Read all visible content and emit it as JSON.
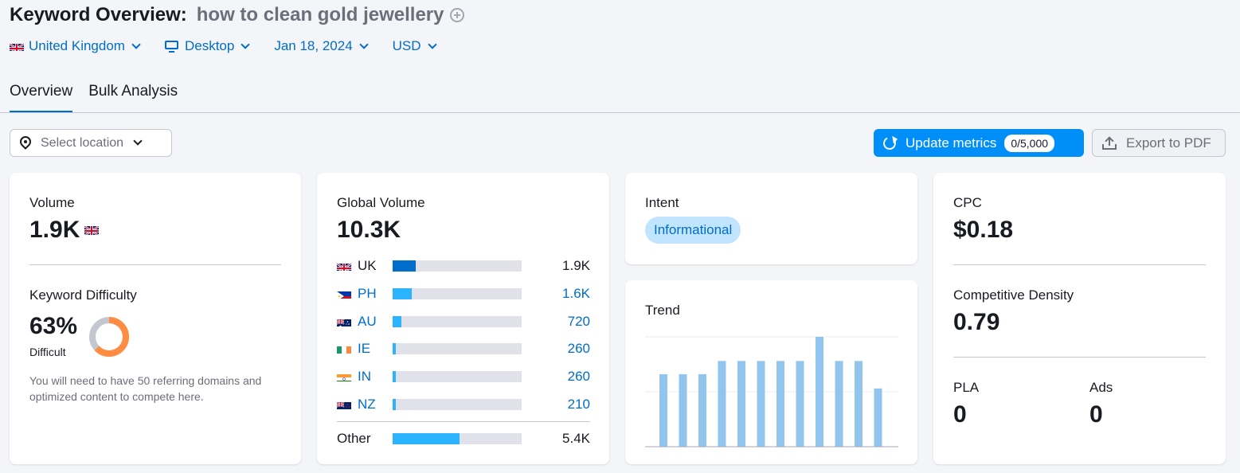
{
  "header": {
    "title_prefix": "Keyword Overview:",
    "keyword": "how to clean gold jewellery",
    "add_icon": "plus-circle-icon"
  },
  "filters": {
    "country": "United Kingdom",
    "device": "Desktop",
    "date": "Jan 18, 2024",
    "currency": "USD"
  },
  "tabs": [
    {
      "label": "Overview",
      "active": true
    },
    {
      "label": "Bulk Analysis",
      "active": false
    }
  ],
  "toolbar": {
    "location_placeholder": "Select location",
    "update_label": "Update metrics",
    "update_count": "0/5,000",
    "export_label": "Export to PDF"
  },
  "volume": {
    "label": "Volume",
    "value": "1.9K"
  },
  "keyword_difficulty": {
    "label": "Keyword Difficulty",
    "value": "63%",
    "level": "Difficult",
    "percent": 63,
    "description": "You will need to have 50 referring domains and optimized content to compete here."
  },
  "global_volume": {
    "label": "Global Volume",
    "value": "10.3K",
    "rows": [
      {
        "code": "UK",
        "value": "1.9K",
        "fraction": 0.18,
        "link": false,
        "flag": "uk"
      },
      {
        "code": "PH",
        "value": "1.6K",
        "fraction": 0.15,
        "link": true,
        "flag": "ph"
      },
      {
        "code": "AU",
        "value": "720",
        "fraction": 0.07,
        "link": true,
        "flag": "au"
      },
      {
        "code": "IE",
        "value": "260",
        "fraction": 0.025,
        "link": true,
        "flag": "ie"
      },
      {
        "code": "IN",
        "value": "260",
        "fraction": 0.025,
        "link": true,
        "flag": "in"
      },
      {
        "code": "NZ",
        "value": "210",
        "fraction": 0.02,
        "link": true,
        "flag": "nz"
      }
    ],
    "other": {
      "label": "Other",
      "value": "5.4K",
      "fraction": 0.52
    },
    "colors": {
      "uk": "#006dca",
      "country": "#2bb3ff",
      "track": "#e0e1e9"
    }
  },
  "intent": {
    "label": "Intent",
    "badge": "Informational"
  },
  "trend": {
    "label": "Trend"
  },
  "chart_data": {
    "type": "bar",
    "categories": [
      "1",
      "2",
      "3",
      "4",
      "5",
      "6",
      "7",
      "8",
      "9",
      "10",
      "11",
      "12"
    ],
    "values": [
      0.66,
      0.66,
      0.66,
      0.78,
      0.78,
      0.78,
      0.78,
      0.78,
      1.0,
      0.78,
      0.78,
      0.53
    ],
    "ylim": [
      0,
      1
    ],
    "grid": true,
    "color": "#92c5ee"
  },
  "cpc": {
    "label": "CPC",
    "value": "$0.18"
  },
  "competitive_density": {
    "label": "Competitive Density",
    "value": "0.79"
  },
  "pla": {
    "label": "PLA",
    "value": "0"
  },
  "ads": {
    "label": "Ads",
    "value": "0"
  },
  "colors": {
    "accent": "#006dca",
    "button": "#008ff8",
    "kd_orange": "#ff8c43",
    "kd_track": "#c4c7cf"
  }
}
